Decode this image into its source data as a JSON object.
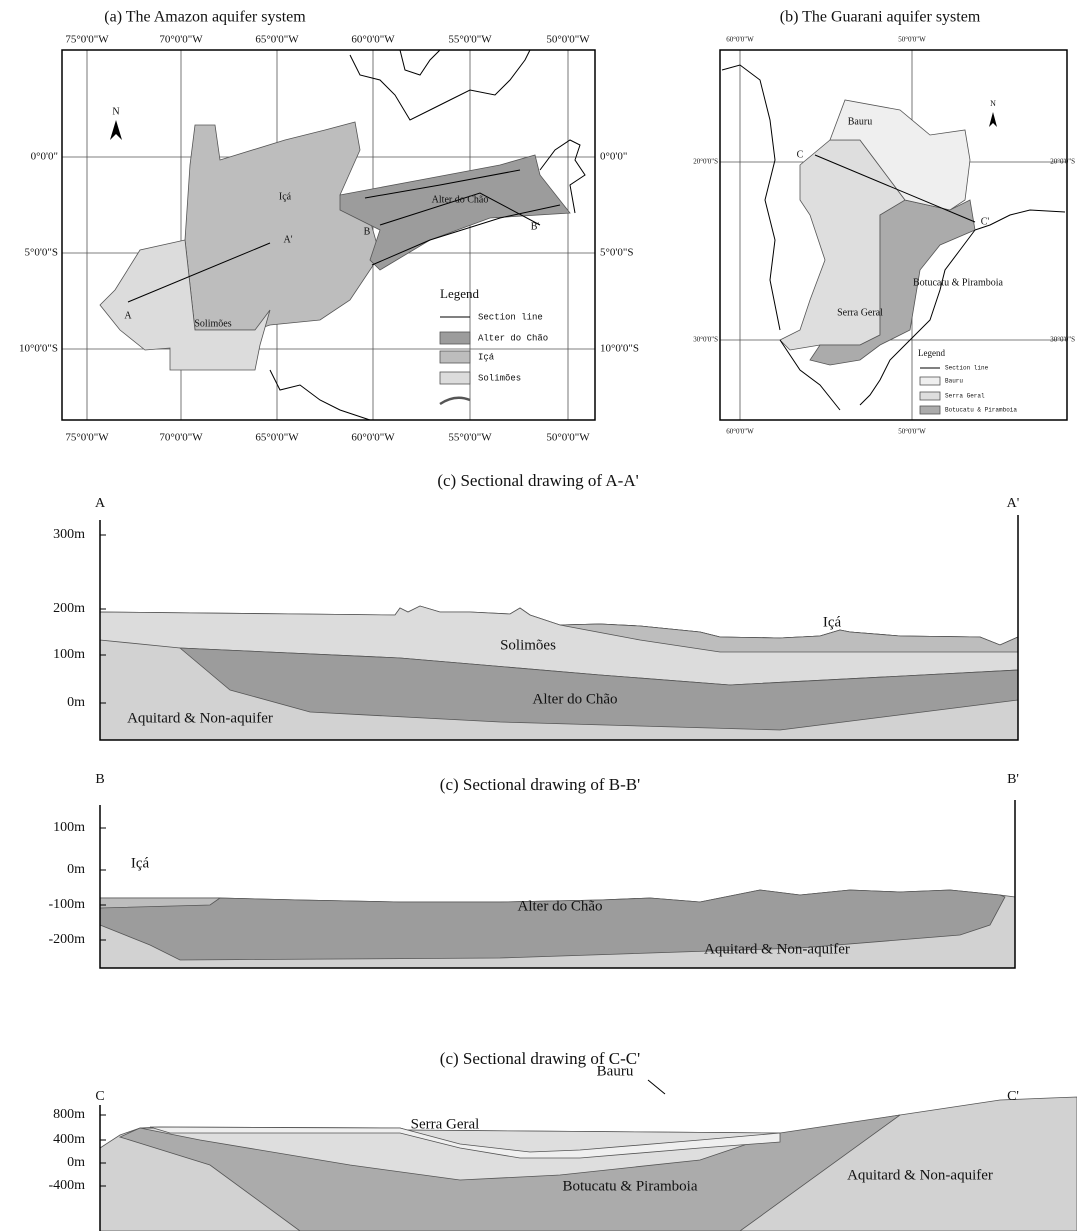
{
  "panel_a": {
    "title": "(a) The Amazon aquifer system",
    "lon_labels": [
      "75°0'0\"W",
      "70°0'0\"W",
      "65°0'0\"W",
      "60°0'0\"W",
      "55°0'0\"W",
      "50°0'0\"W"
    ],
    "lat_labels": [
      "0°0'0\"",
      "5°0'0\"S",
      "10°0'0\"S"
    ],
    "north": "N",
    "labels": [
      "A",
      "A'",
      "Içá",
      "Solimões",
      "B",
      "Alter do Chão",
      "B'"
    ],
    "legend": {
      "title": "Legend",
      "items": [
        "Section line",
        "Alter do Chão",
        "Içá",
        "Solimões"
      ]
    }
  },
  "panel_b": {
    "title": "(b) The Guarani aquifer system",
    "lon_labels": [
      "60°0'0\"W",
      "50°0'0\"W"
    ],
    "lat_labels": [
      "20°0'0\"S",
      "30°0'0\"S"
    ],
    "north": "N",
    "labels": [
      "C",
      "Bauru",
      "C'",
      "Botucatu & Piramboia",
      "Serra Geral"
    ],
    "legend": {
      "title": "Legend",
      "items": [
        "Section line",
        "Bauru",
        "Serra Geral",
        "Botucatu & Piramboia"
      ]
    }
  },
  "sections": [
    {
      "title": "(c) Sectional drawing of A-A'",
      "start": "A",
      "end": "A'",
      "depth_labels": [
        "300m",
        "200m",
        "100m",
        "0m"
      ],
      "layers": [
        "Solimões",
        "Içá",
        "Alter do Chão",
        "Aquitard & Non-aquifer"
      ]
    },
    {
      "title": "(c) Sectional drawing of B-B'",
      "start": "B",
      "end": "B'",
      "depth_labels": [
        "100m",
        "0m",
        "-100m",
        "-200m"
      ],
      "layers": [
        "Içá",
        "Alter do Chão",
        "Aquitard & Non-aquifer"
      ]
    },
    {
      "title": "(c) Sectional drawing of C-C'",
      "start": "C",
      "end": "C'",
      "depth_labels": [
        "800m",
        "400m",
        "0m",
        "-400m"
      ],
      "layers": [
        "Bauru",
        "Serra Geral",
        "Botucatu & Piramboia",
        "Aquitard & Non-aquifer"
      ]
    }
  ]
}
